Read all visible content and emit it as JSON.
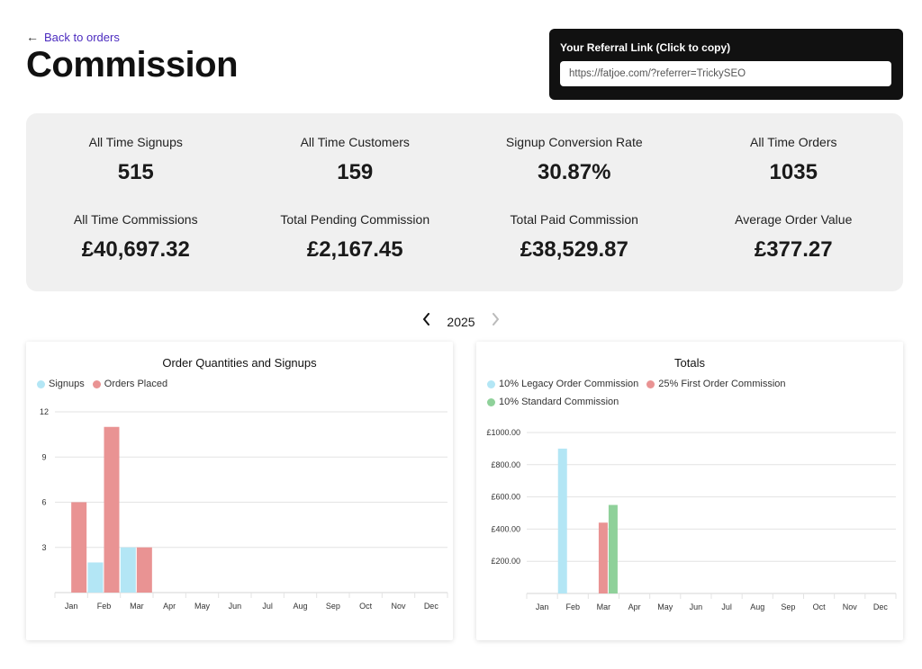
{
  "header": {
    "back_label": "Back to orders",
    "back_arrow": "←",
    "title": "Commission"
  },
  "referral": {
    "label": "Your Referral Link (Click to copy)",
    "url": "https://fatjoe.com/?referrer=TrickySEO"
  },
  "stats": [
    {
      "label": "All Time Signups",
      "value": "515"
    },
    {
      "label": "All Time Customers",
      "value": "159"
    },
    {
      "label": "Signup Conversion Rate",
      "value": "30.87%"
    },
    {
      "label": "All Time Orders",
      "value": "1035"
    },
    {
      "label": "All Time Commissions",
      "value": "£40,697.32"
    },
    {
      "label": "Total Pending Commission",
      "value": "£2,167.45"
    },
    {
      "label": "Total Paid Commission",
      "value": "£38,529.87"
    },
    {
      "label": "Average Order Value",
      "value": "£377.27"
    }
  ],
  "year_nav": {
    "prev_icon": "chevron-left-icon",
    "next_icon": "chevron-right-icon",
    "year": "2025"
  },
  "chart_data": [
    {
      "type": "bar",
      "title": "Order Quantities and Signups",
      "categories": [
        "Jan",
        "Feb",
        "Mar",
        "Apr",
        "May",
        "Jun",
        "Jul",
        "Aug",
        "Sep",
        "Oct",
        "Nov",
        "Dec"
      ],
      "series": [
        {
          "name": "Signups",
          "color": "#b3e6f5",
          "values": [
            0,
            2,
            3,
            0,
            0,
            0,
            0,
            0,
            0,
            0,
            0,
            0
          ]
        },
        {
          "name": "Orders Placed",
          "color": "#e99393",
          "values": [
            6,
            11,
            3,
            0,
            0,
            0,
            0,
            0,
            0,
            0,
            0,
            0
          ]
        }
      ],
      "ylim": [
        0,
        12
      ],
      "yticks": [
        3,
        6,
        9,
        12
      ],
      "ytick_labels": [
        "3",
        "6",
        "9",
        "12"
      ],
      "grid": true,
      "legend": "top-left"
    },
    {
      "type": "bar",
      "title": "Totals",
      "categories": [
        "Jan",
        "Feb",
        "Mar",
        "Apr",
        "May",
        "Jun",
        "Jul",
        "Aug",
        "Sep",
        "Oct",
        "Nov",
        "Dec"
      ],
      "series": [
        {
          "name": "10% Legacy Order Commission",
          "color": "#b3e6f5",
          "values": [
            0,
            900,
            0,
            0,
            0,
            0,
            0,
            0,
            0,
            0,
            0,
            0
          ]
        },
        {
          "name": "25% First Order Commission",
          "color": "#e99393",
          "values": [
            0,
            0,
            440,
            0,
            0,
            0,
            0,
            0,
            0,
            0,
            0,
            0
          ]
        },
        {
          "name": "10% Standard Commission",
          "color": "#8fd19a",
          "values": [
            0,
            0,
            550,
            0,
            0,
            0,
            0,
            0,
            0,
            0,
            0,
            0
          ]
        }
      ],
      "ylim": [
        0,
        1000
      ],
      "yticks": [
        200,
        400,
        600,
        800,
        1000
      ],
      "ytick_labels": [
        "£200.00",
        "£400.00",
        "£600.00",
        "£800.00",
        "£1000.00"
      ],
      "grid": true,
      "legend": "top-left"
    }
  ]
}
